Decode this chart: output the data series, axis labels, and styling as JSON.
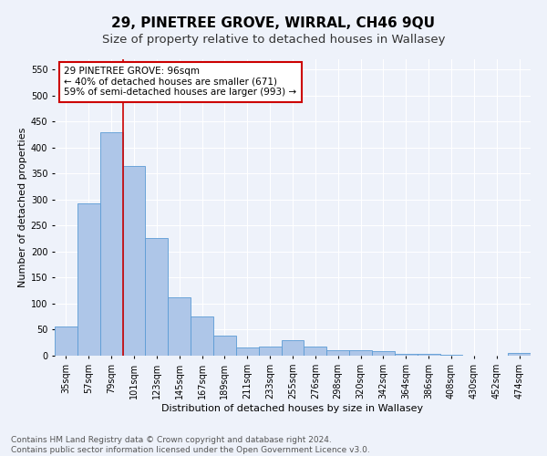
{
  "title": "29, PINETREE GROVE, WIRRAL, CH46 9QU",
  "subtitle": "Size of property relative to detached houses in Wallasey",
  "xlabel": "Distribution of detached houses by size in Wallasey",
  "ylabel": "Number of detached properties",
  "footer_line1": "Contains HM Land Registry data © Crown copyright and database right 2024.",
  "footer_line2": "Contains public sector information licensed under the Open Government Licence v3.0.",
  "bin_labels": [
    "35sqm",
    "57sqm",
    "79sqm",
    "101sqm",
    "123sqm",
    "145sqm",
    "167sqm",
    "189sqm",
    "211sqm",
    "233sqm",
    "255sqm",
    "276sqm",
    "298sqm",
    "320sqm",
    "342sqm",
    "364sqm",
    "386sqm",
    "408sqm",
    "430sqm",
    "452sqm",
    "474sqm"
  ],
  "bar_values": [
    57,
    293,
    430,
    365,
    226,
    113,
    76,
    38,
    16,
    17,
    29,
    17,
    10,
    10,
    9,
    4,
    4,
    1,
    0,
    0,
    5
  ],
  "bar_color": "#aec6e8",
  "bar_edge_color": "#5b9bd5",
  "vline_x": 3.0,
  "vline_color": "#cc0000",
  "annotation_text": "29 PINETREE GROVE: 96sqm\n← 40% of detached houses are smaller (671)\n59% of semi-detached houses are larger (993) →",
  "annotation_box_edgecolor": "#cc0000",
  "annotation_box_facecolor": "#ffffff",
  "ylim": [
    0,
    570
  ],
  "yticks": [
    0,
    50,
    100,
    150,
    200,
    250,
    300,
    350,
    400,
    450,
    500,
    550
  ],
  "background_color": "#eef2fa",
  "grid_color": "#ffffff",
  "title_fontsize": 11,
  "subtitle_fontsize": 9.5,
  "axis_label_fontsize": 8,
  "tick_fontsize": 7,
  "annotation_fontsize": 7.5,
  "footer_fontsize": 6.5
}
